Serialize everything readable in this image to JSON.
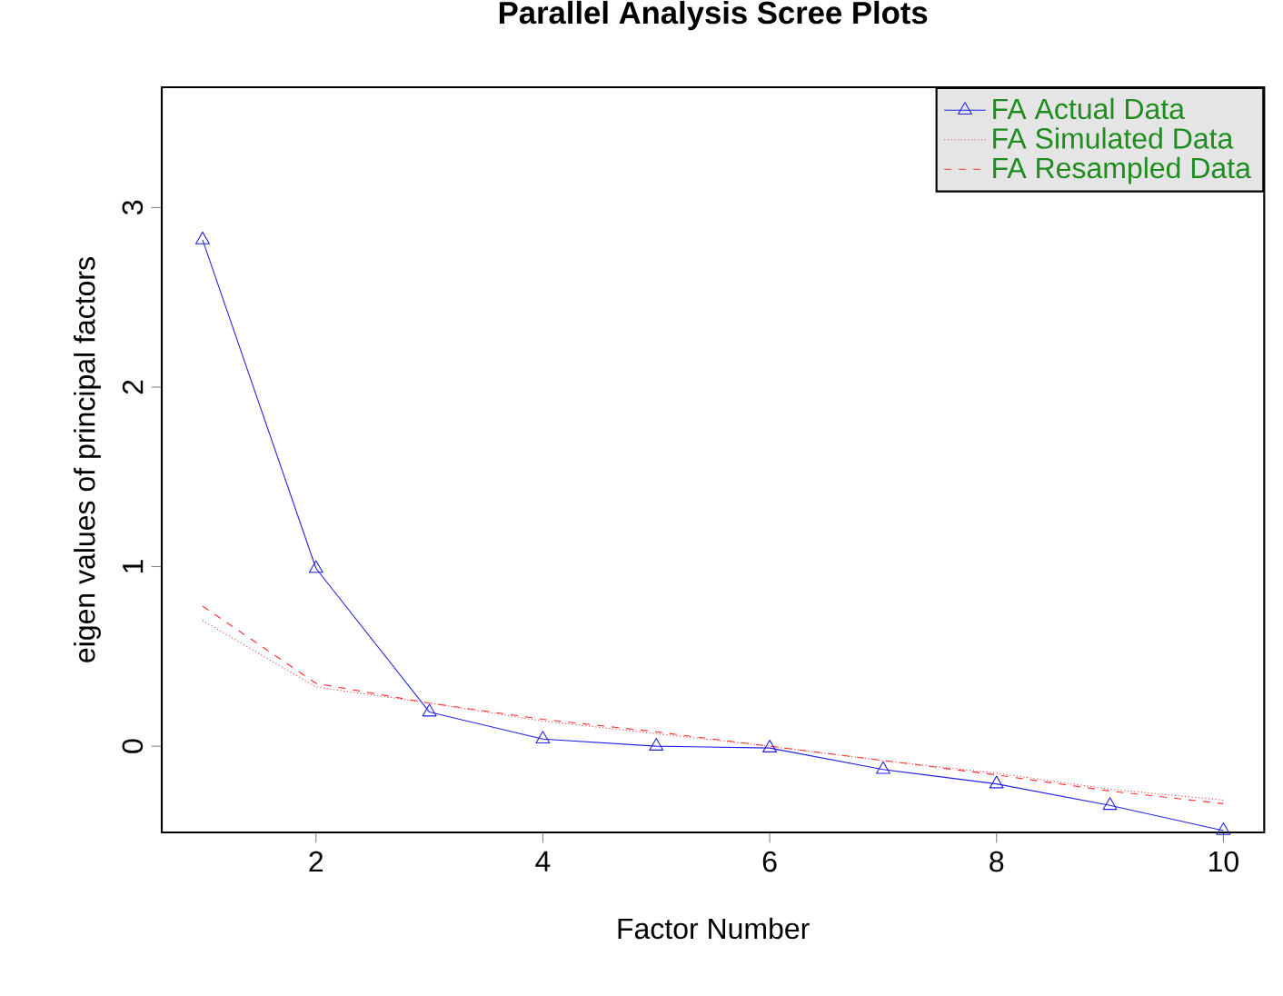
{
  "chart_data": {
    "type": "line",
    "title": "Parallel Analysis Scree Plots",
    "xlabel": "Factor Number",
    "ylabel": "eigen values of principal factors",
    "x": [
      1,
      2,
      3,
      4,
      5,
      6,
      7,
      8,
      9,
      10
    ],
    "series": [
      {
        "name": "FA  Actual Data",
        "color": "#2020e0",
        "marker": "triangle",
        "line_style": "solid",
        "values": [
          2.82,
          0.99,
          0.19,
          0.04,
          0.0,
          -0.01,
          -0.13,
          -0.21,
          -0.33,
          -0.47
        ]
      },
      {
        "name": "FA  Simulated Data",
        "color": "#ff3030",
        "marker": "none",
        "line_style": "dotted",
        "values": [
          0.7,
          0.33,
          0.24,
          0.14,
          0.07,
          0.0,
          -0.08,
          -0.15,
          -0.24,
          -0.3
        ]
      },
      {
        "name": "FA  Resampled Data",
        "color": "#ff3030",
        "marker": "none",
        "line_style": "dashed",
        "values": [
          0.78,
          0.35,
          0.24,
          0.15,
          0.08,
          0.0,
          -0.08,
          -0.16,
          -0.25,
          -0.32
        ]
      }
    ],
    "xlim": [
      0.64,
      10.36
    ],
    "ylim": [
      -0.48,
      3.67
    ],
    "xticks": [
      2,
      4,
      6,
      8,
      10
    ],
    "yticks": [
      0,
      1,
      2,
      3
    ],
    "grid": false,
    "legend": "top right"
  }
}
